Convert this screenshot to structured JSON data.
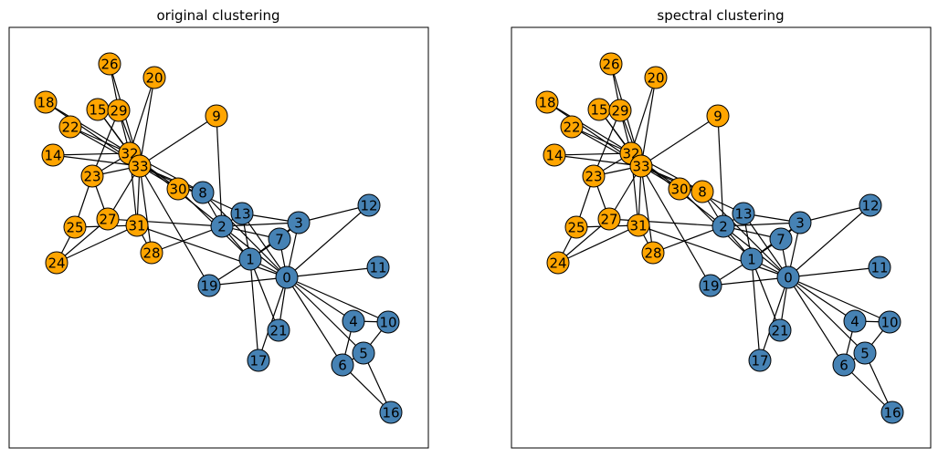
{
  "colors": {
    "orange": "#FFA500",
    "blue": "#4682B4"
  },
  "node_ids": [
    0,
    1,
    2,
    3,
    4,
    5,
    6,
    7,
    8,
    9,
    10,
    11,
    12,
    13,
    14,
    15,
    16,
    17,
    18,
    19,
    20,
    21,
    22,
    23,
    24,
    25,
    26,
    27,
    28,
    29,
    30,
    31,
    32,
    33
  ],
  "node_labels": [
    "0",
    "1",
    "2",
    "3",
    "4",
    "5",
    "6",
    "7",
    "8",
    "9",
    "10",
    "11",
    "12",
    "13",
    "14",
    "15",
    "16",
    "17",
    "18",
    "19",
    "20",
    "21",
    "22",
    "23",
    "24",
    "25",
    "26",
    "27",
    "28",
    "29",
    "30",
    "31",
    "32",
    "33"
  ],
  "edges": [
    [
      0,
      1
    ],
    [
      0,
      2
    ],
    [
      0,
      3
    ],
    [
      0,
      4
    ],
    [
      0,
      5
    ],
    [
      0,
      6
    ],
    [
      0,
      7
    ],
    [
      0,
      8
    ],
    [
      0,
      10
    ],
    [
      0,
      11
    ],
    [
      0,
      12
    ],
    [
      0,
      13
    ],
    [
      0,
      17
    ],
    [
      0,
      19
    ],
    [
      0,
      21
    ],
    [
      0,
      31
    ],
    [
      1,
      2
    ],
    [
      1,
      3
    ],
    [
      1,
      7
    ],
    [
      1,
      13
    ],
    [
      1,
      17
    ],
    [
      1,
      19
    ],
    [
      1,
      21
    ],
    [
      1,
      30
    ],
    [
      2,
      3
    ],
    [
      2,
      7
    ],
    [
      2,
      8
    ],
    [
      2,
      9
    ],
    [
      2,
      13
    ],
    [
      2,
      27
    ],
    [
      2,
      28
    ],
    [
      2,
      32
    ],
    [
      3,
      7
    ],
    [
      3,
      12
    ],
    [
      3,
      13
    ],
    [
      4,
      6
    ],
    [
      4,
      10
    ],
    [
      5,
      6
    ],
    [
      5,
      10
    ],
    [
      5,
      16
    ],
    [
      6,
      16
    ],
    [
      8,
      30
    ],
    [
      8,
      32
    ],
    [
      8,
      33
    ],
    [
      9,
      33
    ],
    [
      13,
      33
    ],
    [
      14,
      32
    ],
    [
      14,
      33
    ],
    [
      15,
      32
    ],
    [
      15,
      33
    ],
    [
      18,
      32
    ],
    [
      18,
      33
    ],
    [
      19,
      33
    ],
    [
      20,
      32
    ],
    [
      20,
      33
    ],
    [
      22,
      32
    ],
    [
      22,
      33
    ],
    [
      23,
      25
    ],
    [
      23,
      27
    ],
    [
      23,
      29
    ],
    [
      23,
      32
    ],
    [
      23,
      33
    ],
    [
      24,
      25
    ],
    [
      24,
      27
    ],
    [
      24,
      31
    ],
    [
      25,
      31
    ],
    [
      26,
      29
    ],
    [
      26,
      33
    ],
    [
      27,
      33
    ],
    [
      28,
      31
    ],
    [
      28,
      33
    ],
    [
      29,
      32
    ],
    [
      29,
      33
    ],
    [
      30,
      32
    ],
    [
      30,
      33
    ],
    [
      31,
      32
    ],
    [
      31,
      33
    ],
    [
      32,
      33
    ]
  ],
  "panels": [
    {
      "title": "original clustering",
      "groups": [
        "b",
        "b",
        "b",
        "b",
        "b",
        "b",
        "b",
        "b",
        "b",
        "o",
        "b",
        "b",
        "b",
        "b",
        "o",
        "o",
        "b",
        "b",
        "o",
        "b",
        "o",
        "b",
        "o",
        "o",
        "o",
        "o",
        "o",
        "o",
        "o",
        "o",
        "o",
        "o",
        "o",
        "o"
      ]
    },
    {
      "title": "spectral clustering",
      "groups": [
        "b",
        "b",
        "b",
        "b",
        "b",
        "b",
        "b",
        "b",
        "o",
        "o",
        "b",
        "b",
        "b",
        "b",
        "o",
        "o",
        "b",
        "b",
        "o",
        "b",
        "o",
        "b",
        "o",
        "o",
        "o",
        "o",
        "o",
        "o",
        "o",
        "o",
        "o",
        "o",
        "o",
        "o"
      ]
    }
  ]
}
